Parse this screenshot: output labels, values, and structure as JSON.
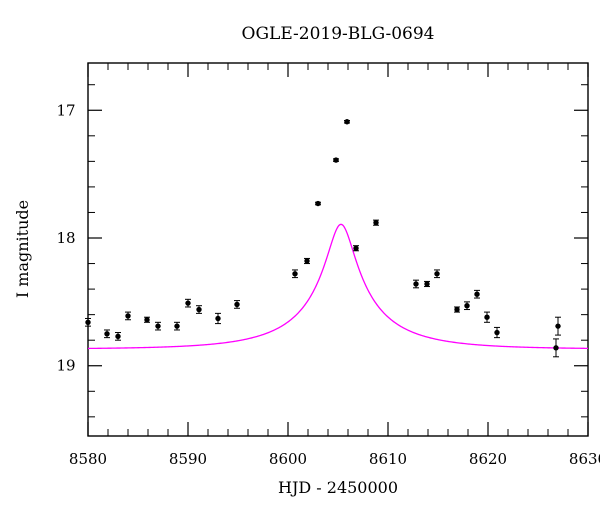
{
  "chart_data": {
    "type": "scatter",
    "title": "OGLE-2019-BLG-0694",
    "xlabel": "HJD - 2450000",
    "ylabel": "I magnitude",
    "xlim": [
      8580,
      8630
    ],
    "ylim": [
      19.55,
      16.63
    ],
    "y_inverted": true,
    "grid": false,
    "x_major_ticks": [
      8580,
      8590,
      8600,
      8610,
      8620,
      8630
    ],
    "x_tick_labels": [
      "8580",
      "8590",
      "8600",
      "8610",
      "8620",
      "8630"
    ],
    "x_minor_ticks": [
      8582,
      8584,
      8586,
      8588,
      8592,
      8594,
      8596,
      8598,
      8602,
      8604,
      8606,
      8608,
      8612,
      8614,
      8616,
      8618,
      8622,
      8624,
      8626,
      8628
    ],
    "y_major_ticks": [
      17,
      18,
      19
    ],
    "y_tick_labels": [
      "17",
      "18",
      "19"
    ],
    "y_minor_ticks": [
      16.8,
      17.2,
      17.4,
      17.6,
      17.8,
      18.2,
      18.4,
      18.6,
      18.8,
      19.2,
      19.4
    ],
    "series": [
      {
        "type": "scatter",
        "color": "#000000",
        "points": [
          {
            "x": 8580.0,
            "y": 18.66,
            "err": 0.03
          },
          {
            "x": 8581.9,
            "y": 18.75,
            "err": 0.03
          },
          {
            "x": 8583.0,
            "y": 18.77,
            "err": 0.03
          },
          {
            "x": 8584.0,
            "y": 18.61,
            "err": 0.03
          },
          {
            "x": 8585.9,
            "y": 18.64,
            "err": 0.02
          },
          {
            "x": 8587.0,
            "y": 18.69,
            "err": 0.03
          },
          {
            "x": 8588.9,
            "y": 18.69,
            "err": 0.03
          },
          {
            "x": 8590.0,
            "y": 18.51,
            "err": 0.03
          },
          {
            "x": 8591.1,
            "y": 18.56,
            "err": 0.03
          },
          {
            "x": 8593.0,
            "y": 18.63,
            "err": 0.04
          },
          {
            "x": 8594.9,
            "y": 18.52,
            "err": 0.03
          },
          {
            "x": 8600.7,
            "y": 18.28,
            "err": 0.03
          },
          {
            "x": 8601.9,
            "y": 18.18,
            "err": 0.02
          },
          {
            "x": 8603.0,
            "y": 17.73,
            "err": 0.01
          },
          {
            "x": 8604.8,
            "y": 17.39,
            "err": 0.01
          },
          {
            "x": 8605.9,
            "y": 17.09,
            "err": 0.01
          },
          {
            "x": 8606.8,
            "y": 18.08,
            "err": 0.02
          },
          {
            "x": 8608.8,
            "y": 17.88,
            "err": 0.02
          },
          {
            "x": 8612.8,
            "y": 18.36,
            "err": 0.03
          },
          {
            "x": 8613.9,
            "y": 18.36,
            "err": 0.02
          },
          {
            "x": 8614.9,
            "y": 18.28,
            "err": 0.03
          },
          {
            "x": 8616.9,
            "y": 18.56,
            "err": 0.02
          },
          {
            "x": 8617.9,
            "y": 18.53,
            "err": 0.03
          },
          {
            "x": 8618.9,
            "y": 18.44,
            "err": 0.03
          },
          {
            "x": 8619.9,
            "y": 18.62,
            "err": 0.04
          },
          {
            "x": 8620.9,
            "y": 18.74,
            "err": 0.04
          },
          {
            "x": 8626.8,
            "y": 18.86,
            "err": 0.07
          },
          {
            "x": 8627.0,
            "y": 18.69,
            "err": 0.07
          }
        ]
      },
      {
        "type": "line",
        "color": "#ff00ff",
        "t0": 8605.3,
        "u0": 0.15,
        "tE": 8.9,
        "baseline_mag": 18.87,
        "blend_fraction": 0.255
      }
    ]
  }
}
